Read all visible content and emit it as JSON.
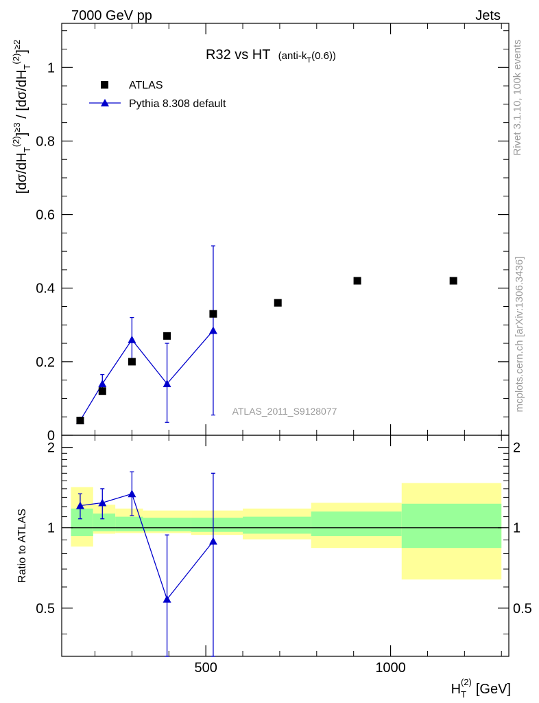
{
  "header": {
    "energy_label": "7000 GeV pp",
    "process_label": "Jets"
  },
  "side_labels": {
    "rivet": "Rivet 3.1.10,  100k events",
    "mcplots": "mcplots.cern.ch [arXiv:1306.3436]"
  },
  "colors": {
    "data_marker": "#000000",
    "mc_line": "#0000cc",
    "band_inner": "#99ff99",
    "band_outer": "#ffff99"
  },
  "chart_data": [
    {
      "type": "scatter",
      "title": "R32 vs HT",
      "title_suffix": "(anti-k",
      "title_suffix_sub": "T",
      "title_suffix_end": "(0.6))",
      "watermark": "ATLAS_2011_S9128077",
      "ylabel": "[dσ/dH_T^(2)]^≥3 / [dσ/dH_T^(2)]^≥2",
      "ylim": [
        0,
        1.12
      ],
      "xlim": [
        110,
        1320
      ],
      "yticks": [
        0,
        0.2,
        0.4,
        0.6,
        0.8,
        1
      ],
      "ytick_labels": [
        "0",
        "0.2",
        "0.4",
        "0.6",
        "0.8",
        "1"
      ],
      "legend": {
        "position": "top-left",
        "entries": [
          "ATLAS",
          "Pythia 8.308 default"
        ]
      },
      "series": [
        {
          "name": "ATLAS",
          "marker": "square",
          "x": [
            160,
            220,
            300,
            395,
            520,
            695,
            910,
            1170
          ],
          "y": [
            0.04,
            0.12,
            0.2,
            0.27,
            0.33,
            0.36,
            0.42,
            0.42
          ]
        },
        {
          "name": "Pythia 8.308 default",
          "marker": "triangle",
          "x": [
            160,
            220,
            300,
            395,
            520
          ],
          "y": [
            0.04,
            0.14,
            0.26,
            0.14,
            0.285
          ],
          "err_low": [
            0.005,
            0.02,
            0.06,
            0.105,
            0.23
          ],
          "err_high": [
            0.005,
            0.025,
            0.06,
            0.11,
            0.23
          ]
        }
      ]
    },
    {
      "type": "scatter",
      "ylabel": "Ratio to ATLAS",
      "xlabel": "H_T^(2) [GeV]",
      "xlabel_main": "H",
      "xlabel_sub": "T",
      "xlabel_sup": "(2)",
      "xlabel_unit": "[GeV]",
      "ylim": [
        0.33,
        2.22
      ],
      "xlim": [
        110,
        1320
      ],
      "yticks": [
        0.5,
        1,
        2
      ],
      "ytick_labels": [
        "0.5",
        "1",
        "2"
      ],
      "xticks": [
        500,
        1000
      ],
      "xtick_labels": [
        "500",
        "1000"
      ],
      "bands": [
        {
          "x0": 135,
          "x1": 195,
          "inner": [
            0.93,
            1.18
          ],
          "outer": [
            0.85,
            1.42
          ]
        },
        {
          "x0": 195,
          "x1": 255,
          "inner": [
            0.97,
            1.13
          ],
          "outer": [
            0.95,
            1.22
          ]
        },
        {
          "x0": 255,
          "x1": 330,
          "inner": [
            0.97,
            1.1
          ],
          "outer": [
            0.955,
            1.18
          ]
        },
        {
          "x0": 330,
          "x1": 460,
          "inner": [
            0.97,
            1.09
          ],
          "outer": [
            0.955,
            1.16
          ]
        },
        {
          "x0": 460,
          "x1": 600,
          "inner": [
            0.965,
            1.09
          ],
          "outer": [
            0.94,
            1.16
          ]
        },
        {
          "x0": 600,
          "x1": 785,
          "inner": [
            0.95,
            1.1
          ],
          "outer": [
            0.905,
            1.18
          ]
        },
        {
          "x0": 785,
          "x1": 1030,
          "inner": [
            0.93,
            1.15
          ],
          "outer": [
            0.84,
            1.24
          ]
        },
        {
          "x0": 1030,
          "x1": 1300,
          "inner": [
            0.84,
            1.23
          ],
          "outer": [
            0.64,
            1.47
          ]
        }
      ],
      "series": [
        {
          "name": "Pythia 8.308 default",
          "marker": "triangle",
          "x": [
            160,
            220,
            300,
            395,
            520
          ],
          "y": [
            1.21,
            1.24,
            1.34,
            0.54,
            0.89
          ],
          "err_low": [
            0.13,
            0.16,
            0.23,
            0.24,
            0.7
          ],
          "err_high": [
            0.13,
            0.16,
            0.28,
            0.4,
            0.71
          ]
        }
      ]
    }
  ]
}
